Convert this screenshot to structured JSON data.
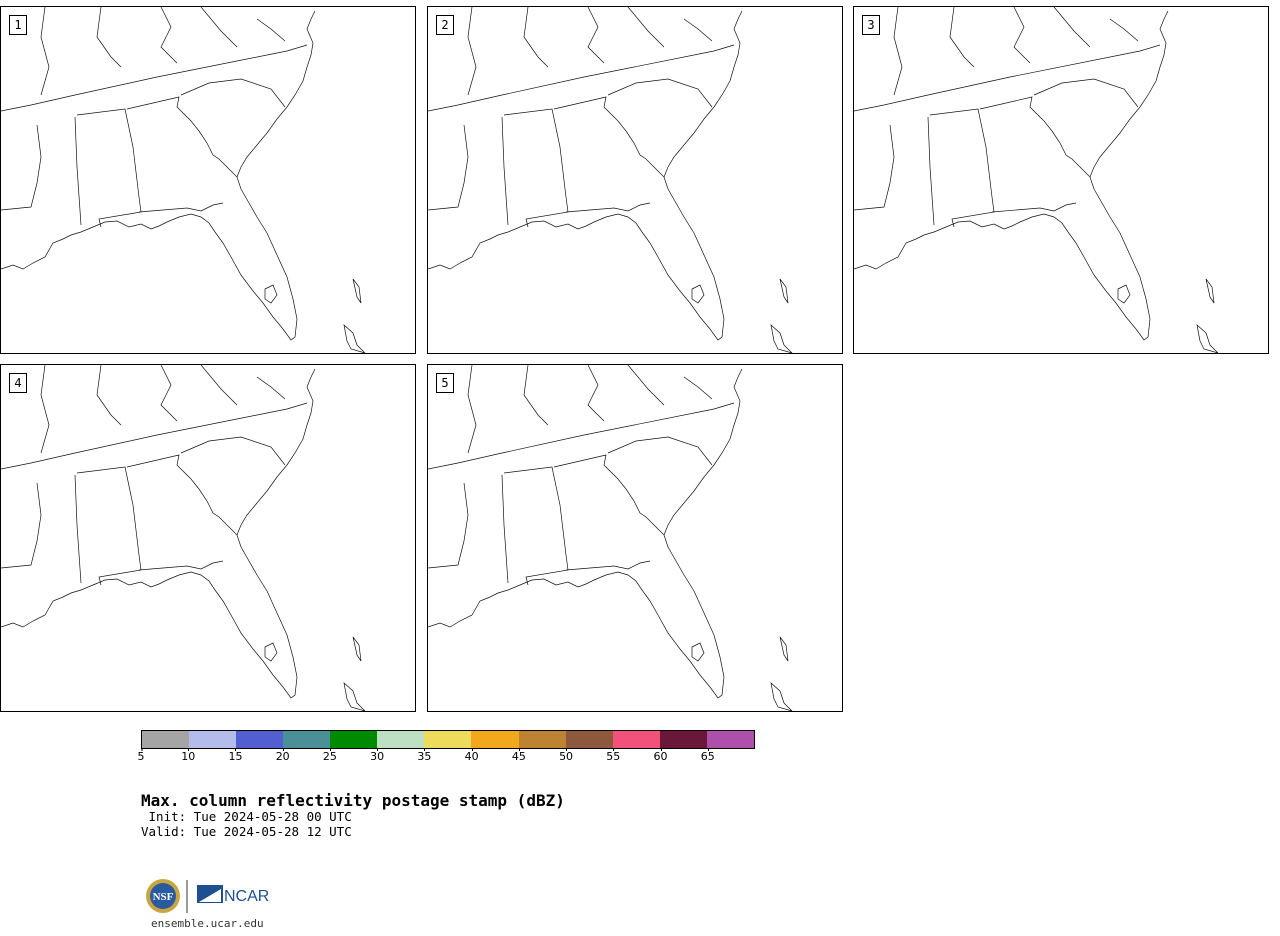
{
  "panels": [
    {
      "label": "1"
    },
    {
      "label": "2"
    },
    {
      "label": "3"
    },
    {
      "label": "4"
    },
    {
      "label": "5"
    }
  ],
  "colorbar": {
    "colors": [
      "#a5a5a5",
      "#b3bcea",
      "#525fd1",
      "#4b8f98",
      "#008a00",
      "#bde0c3",
      "#eddc5b",
      "#f2a81c",
      "#bd8332",
      "#8d583b",
      "#f25179",
      "#6a1739",
      "#ad4fab"
    ],
    "tick_labels": [
      "5",
      "10",
      "15",
      "20",
      "25",
      "30",
      "35",
      "40",
      "45",
      "50",
      "55",
      "60",
      "65"
    ]
  },
  "title": "Max. column reflectivity postage stamp (dBZ)",
  "init_line": " Init: Tue 2024-05-28 00 UTC",
  "valid_line": "Valid: Tue 2024-05-28 12 UTC",
  "logos": {
    "nsf": "NSF",
    "ncar": "NCAR"
  },
  "website": "ensemble.ucar.edu"
}
